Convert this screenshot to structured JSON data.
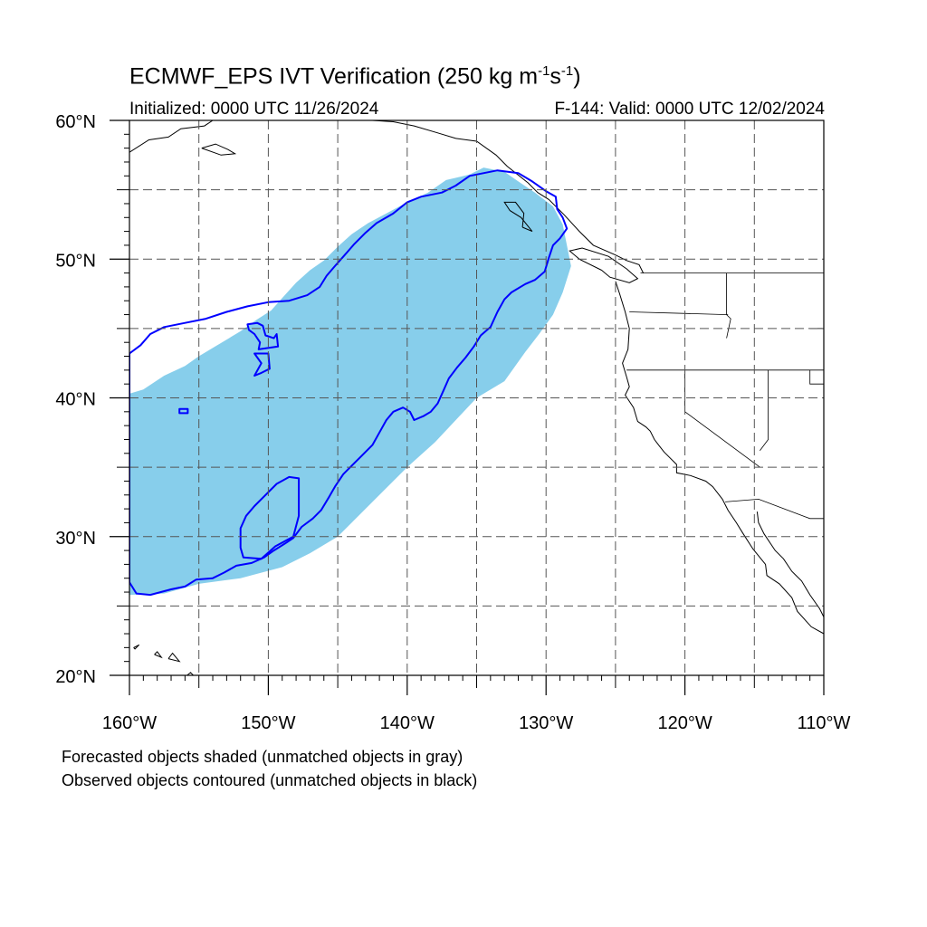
{
  "title": {
    "main": "ECMWF_EPS IVT Verification (250 kg m",
    "sup1": "-1",
    "mid": "s",
    "sup2": "-1",
    "end": ")"
  },
  "subtitle": {
    "initialized": "Initialized: 0000 UTC 11/26/2024",
    "valid": "F-144: Valid: 0000 UTC 12/02/2024"
  },
  "map": {
    "lon_range": [
      -160,
      -110
    ],
    "lat_range": [
      20,
      60
    ],
    "lon_ticks": [
      {
        "value": -160,
        "label": "160°W"
      },
      {
        "value": -150,
        "label": "150°W"
      },
      {
        "value": -140,
        "label": "140°W"
      },
      {
        "value": -130,
        "label": "130°W"
      },
      {
        "value": -120,
        "label": "120°W"
      },
      {
        "value": -110,
        "label": "110°W"
      }
    ],
    "lat_ticks": [
      {
        "value": 60,
        "label": "60°N"
      },
      {
        "value": 50,
        "label": "50°N"
      },
      {
        "value": 40,
        "label": "40°N"
      },
      {
        "value": 30,
        "label": "30°N"
      },
      {
        "value": 20,
        "label": "20°N"
      }
    ],
    "grid_lon": [
      -155,
      -150,
      -145,
      -140,
      -135,
      -130,
      -125,
      -120,
      -115
    ],
    "grid_lat": [
      25,
      30,
      35,
      40,
      45,
      50,
      55
    ],
    "colors": {
      "forecast_fill": "#87ceeb",
      "observed_contour": "#0000ff",
      "coast": "#000000",
      "grid": "#555555"
    },
    "forecast_object": [
      [
        -160,
        25.8
      ],
      [
        -157.5,
        25.9
      ],
      [
        -155,
        26.6
      ],
      [
        -152,
        27.0
      ],
      [
        -149,
        27.8
      ],
      [
        -147,
        28.8
      ],
      [
        -145,
        30.0
      ],
      [
        -143.5,
        31.5
      ],
      [
        -142,
        33.0
      ],
      [
        -140,
        35.0
      ],
      [
        -138,
        36.8
      ],
      [
        -136.5,
        38.4
      ],
      [
        -135,
        40.0
      ],
      [
        -133,
        41.2
      ],
      [
        -131.5,
        43.3
      ],
      [
        -130.5,
        44.6
      ],
      [
        -129.5,
        46.0
      ],
      [
        -128.8,
        47.6
      ],
      [
        -128.2,
        49.5
      ],
      [
        -128.5,
        51.0
      ],
      [
        -128.8,
        52.5
      ],
      [
        -129.5,
        53.8
      ],
      [
        -130.8,
        54.8
      ],
      [
        -132,
        55.6
      ],
      [
        -133,
        56.3
      ],
      [
        -134.5,
        56.6
      ],
      [
        -135.5,
        56.1
      ],
      [
        -137.2,
        55.7
      ],
      [
        -138.5,
        54.8
      ],
      [
        -140,
        54.1
      ],
      [
        -141.5,
        53.3
      ],
      [
        -142.8,
        52.6
      ],
      [
        -144,
        51.8
      ],
      [
        -145,
        50.9
      ],
      [
        -146,
        49.9
      ],
      [
        -147,
        49.2
      ],
      [
        -148,
        48.3
      ],
      [
        -149,
        47.2
      ],
      [
        -149.8,
        46.3
      ],
      [
        -150.9,
        45.6
      ],
      [
        -152,
        44.8
      ],
      [
        -153.5,
        43.9
      ],
      [
        -155,
        43.0
      ],
      [
        -156,
        42.3
      ],
      [
        -157.5,
        41.6
      ],
      [
        -159,
        40.6
      ],
      [
        -160,
        40.3
      ]
    ],
    "observed_objects": [
      [
        [
          -160,
          43.2
        ],
        [
          -159.2,
          43.8
        ],
        [
          -158.5,
          44.6
        ],
        [
          -157.5,
          45.1
        ],
        [
          -156,
          45.4
        ],
        [
          -154.5,
          45.7
        ],
        [
          -153,
          46.2
        ],
        [
          -151.5,
          46.6
        ],
        [
          -150,
          46.9
        ],
        [
          -148.5,
          47.0
        ],
        [
          -147.2,
          47.4
        ],
        [
          -146.3,
          48.0
        ],
        [
          -145.8,
          48.8
        ],
        [
          -145.2,
          49.5
        ],
        [
          -144.5,
          50.3
        ],
        [
          -143.8,
          51.1
        ],
        [
          -143.0,
          51.9
        ],
        [
          -142.2,
          52.6
        ],
        [
          -141.0,
          53.3
        ],
        [
          -140.0,
          54.1
        ],
        [
          -139.0,
          54.5
        ],
        [
          -137.5,
          54.8
        ],
        [
          -136.5,
          55.3
        ],
        [
          -135.5,
          56.0
        ],
        [
          -133.5,
          56.4
        ],
        [
          -132.0,
          56.2
        ],
        [
          -131.0,
          55.6
        ],
        [
          -130.0,
          54.9
        ],
        [
          -129.3,
          54.5
        ],
        [
          -129.2,
          53.6
        ],
        [
          -128.8,
          53.0
        ],
        [
          -128.5,
          52.2
        ],
        [
          -129.0,
          51.5
        ],
        [
          -129.5,
          51.0
        ],
        [
          -129.8,
          50.1
        ],
        [
          -130.1,
          49.1
        ],
        [
          -130.8,
          48.5
        ],
        [
          -131.5,
          48.2
        ],
        [
          -132.5,
          47.6
        ],
        [
          -133.0,
          47.1
        ],
        [
          -133.5,
          46.2
        ],
        [
          -134.0,
          45.1
        ],
        [
          -134.7,
          44.5
        ],
        [
          -135.2,
          43.7
        ],
        [
          -135.8,
          42.9
        ],
        [
          -136.4,
          42.2
        ],
        [
          -137.0,
          41.4
        ],
        [
          -137.4,
          40.5
        ],
        [
          -137.8,
          39.6
        ],
        [
          -138.3,
          39.0
        ],
        [
          -138.8,
          38.7
        ],
        [
          -139.5,
          38.4
        ],
        [
          -139.8,
          39.0
        ],
        [
          -140.3,
          39.3
        ],
        [
          -141.0,
          39.0
        ],
        [
          -141.5,
          38.4
        ],
        [
          -142.0,
          37.5
        ],
        [
          -142.5,
          36.6
        ],
        [
          -143.2,
          35.9
        ],
        [
          -144.0,
          35.1
        ],
        [
          -144.6,
          34.5
        ],
        [
          -145.2,
          33.6
        ],
        [
          -145.6,
          32.9
        ],
        [
          -146.2,
          31.9
        ],
        [
          -146.8,
          31.3
        ],
        [
          -147.6,
          30.7
        ],
        [
          -148.2,
          29.9
        ],
        [
          -148.8,
          29.5
        ],
        [
          -149.6,
          29.0
        ],
        [
          -150.3,
          28.5
        ],
        [
          -151.2,
          28.1
        ],
        [
          -152.3,
          27.9
        ],
        [
          -153.2,
          27.4
        ],
        [
          -154.0,
          27.0
        ],
        [
          -155.2,
          26.9
        ],
        [
          -156.0,
          26.4
        ],
        [
          -157.0,
          26.2
        ],
        [
          -158.5,
          25.8
        ],
        [
          -159.5,
          25.9
        ],
        [
          -160.0,
          26.7
        ]
      ],
      [
        [
          -151.5,
          45.3
        ],
        [
          -150.8,
          45.4
        ],
        [
          -150.4,
          45.2
        ],
        [
          -150.2,
          44.5
        ],
        [
          -149.6,
          44.3
        ],
        [
          -149.4,
          44.6
        ],
        [
          -149.3,
          43.7
        ],
        [
          -150.7,
          43.5
        ],
        [
          -150.6,
          44.0
        ],
        [
          -151.0,
          44.6
        ],
        [
          -151.4,
          44.9
        ]
      ],
      [
        [
          -151.0,
          43.2
        ],
        [
          -150.0,
          43.2
        ],
        [
          -149.9,
          42.1
        ],
        [
          -150.5,
          41.8
        ],
        [
          -151.0,
          41.6
        ],
        [
          -150.5,
          42.5
        ],
        [
          -151.0,
          43.2
        ]
      ],
      [
        [
          -156.4,
          39.2
        ],
        [
          -155.8,
          39.2
        ],
        [
          -155.8,
          38.9
        ],
        [
          -156.4,
          38.9
        ]
      ],
      [
        [
          -151.0,
          32.2
        ],
        [
          -150.4,
          32.8
        ],
        [
          -149.4,
          33.8
        ],
        [
          -148.5,
          34.3
        ],
        [
          -147.8,
          34.2
        ],
        [
          -147.8,
          31.5
        ],
        [
          -148.2,
          30.0
        ],
        [
          -149.5,
          29.3
        ],
        [
          -150.5,
          28.4
        ],
        [
          -151.8,
          28.5
        ],
        [
          -152.0,
          29.2
        ],
        [
          -152.0,
          30.6
        ],
        [
          -151.6,
          31.5
        ]
      ]
    ],
    "coastlines": [
      [
        [
          -125.0,
          48.4
        ],
        [
          -124.7,
          47.5
        ],
        [
          -124.3,
          46.2
        ],
        [
          -124.0,
          45.0
        ],
        [
          -124.1,
          43.5
        ],
        [
          -124.5,
          42.5
        ],
        [
          -124.2,
          41.5
        ],
        [
          -124.0,
          40.8
        ],
        [
          -124.3,
          40.2
        ],
        [
          -123.7,
          39.3
        ],
        [
          -123.4,
          38.3
        ],
        [
          -122.8,
          37.9
        ],
        [
          -122.5,
          37.6
        ],
        [
          -122.2,
          37.0
        ],
        [
          -121.9,
          36.6
        ],
        [
          -121.5,
          36.1
        ],
        [
          -120.6,
          35.2
        ],
        [
          -120.6,
          34.6
        ],
        [
          -119.6,
          34.4
        ],
        [
          -118.5,
          34.0
        ],
        [
          -118.0,
          33.6
        ],
        [
          -117.3,
          32.7
        ],
        [
          -116.9,
          31.9
        ],
        [
          -116.3,
          31.0
        ],
        [
          -115.8,
          30.2
        ],
        [
          -115.1,
          29.1
        ],
        [
          -114.2,
          28.0
        ],
        [
          -114.1,
          27.2
        ],
        [
          -113.2,
          26.6
        ],
        [
          -112.3,
          25.6
        ],
        [
          -111.9,
          24.6
        ],
        [
          -110.9,
          23.5
        ],
        [
          -110.0,
          23.0
        ]
      ],
      [
        [
          -114.8,
          31.8
        ],
        [
          -114.7,
          31.0
        ],
        [
          -114.3,
          30.2
        ],
        [
          -113.5,
          29.0
        ],
        [
          -112.9,
          28.4
        ],
        [
          -112.3,
          27.5
        ],
        [
          -111.6,
          26.8
        ],
        [
          -111.0,
          25.8
        ],
        [
          -110.3,
          24.8
        ],
        [
          -110.0,
          24.2
        ]
      ],
      [
        [
          -123.0,
          49.0
        ],
        [
          -123.3,
          49.6
        ],
        [
          -124.2,
          49.9
        ],
        [
          -125.0,
          50.3
        ],
        [
          -126.6,
          51.0
        ],
        [
          -127.6,
          52.0
        ],
        [
          -128.7,
          53.2
        ],
        [
          -129.8,
          54.3
        ],
        [
          -130.6,
          54.8
        ],
        [
          -131.3,
          55.5
        ],
        [
          -132.8,
          56.7
        ],
        [
          -133.6,
          57.5
        ],
        [
          -135.0,
          58.5
        ],
        [
          -136.5,
          58.7
        ],
        [
          -137.8,
          59.1
        ],
        [
          -139.5,
          59.6
        ],
        [
          -141.0,
          59.9
        ],
        [
          -142.5,
          60.0
        ]
      ],
      [
        [
          -126.0,
          49.2
        ],
        [
          -125.4,
          48.7
        ],
        [
          -124.0,
          48.3
        ],
        [
          -123.4,
          48.6
        ],
        [
          -124.2,
          49.3
        ],
        [
          -125.5,
          50.2
        ],
        [
          -127.4,
          50.8
        ],
        [
          -128.3,
          50.6
        ],
        [
          -127.6,
          50.0
        ],
        [
          -126.0,
          49.2
        ]
      ],
      [
        [
          -131.7,
          52.3
        ],
        [
          -131.0,
          52.0
        ],
        [
          -131.8,
          53.0
        ],
        [
          -132.6,
          53.5
        ],
        [
          -133.0,
          54.1
        ],
        [
          -132.2,
          54.1
        ],
        [
          -131.6,
          53.3
        ],
        [
          -131.7,
          52.3
        ]
      ],
      [
        [
          -160.0,
          57.7
        ],
        [
          -158.6,
          58.6
        ],
        [
          -157.2,
          58.8
        ],
        [
          -156.3,
          59.4
        ],
        [
          -154.6,
          59.6
        ],
        [
          -154.0,
          60.0
        ]
      ],
      [
        [
          -154.8,
          58.0
        ],
        [
          -153.4,
          57.5
        ],
        [
          -152.4,
          57.6
        ],
        [
          -152.9,
          57.9
        ],
        [
          -153.8,
          58.3
        ],
        [
          -154.8,
          58.0
        ]
      ],
      [
        [
          -156.1,
          19.8
        ],
        [
          -155.6,
          20.2
        ],
        [
          -154.9,
          19.5
        ],
        [
          -155.6,
          18.9
        ],
        [
          -156.1,
          19.8
        ]
      ],
      [
        [
          -157.2,
          21.2
        ],
        [
          -156.9,
          21.6
        ],
        [
          -156.4,
          21.0
        ],
        [
          -157.2,
          21.2
        ]
      ],
      [
        [
          -158.2,
          21.5
        ],
        [
          -157.7,
          21.3
        ],
        [
          -158.0,
          21.7
        ],
        [
          -158.2,
          21.5
        ]
      ],
      [
        [
          -159.7,
          22.0
        ],
        [
          -159.3,
          22.2
        ],
        [
          -159.6,
          21.9
        ],
        [
          -159.7,
          22.0
        ]
      ]
    ],
    "borders": [
      [
        [
          -123.2,
          49.0
        ],
        [
          -110.0,
          49.0
        ]
      ],
      [
        [
          -124.2,
          42.0
        ],
        [
          -110.0,
          42.0
        ]
      ],
      [
        [
          -120.0,
          42.0
        ],
        [
          -120.0,
          39.0
        ],
        [
          -114.6,
          35.0
        ]
      ],
      [
        [
          -117.0,
          49.0
        ],
        [
          -117.0,
          46.0
        ],
        [
          -116.7,
          45.7
        ],
        [
          -117.0,
          44.3
        ]
      ],
      [
        [
          -116.9,
          46.0
        ],
        [
          -124.0,
          46.2
        ]
      ],
      [
        [
          -114.0,
          42.0
        ],
        [
          -114.0,
          37.0
        ],
        [
          -114.6,
          36.2
        ]
      ],
      [
        [
          -117.1,
          32.5
        ],
        [
          -114.7,
          32.7
        ],
        [
          -111.0,
          31.3
        ],
        [
          -110.0,
          31.3
        ]
      ],
      [
        [
          -111.0,
          42.0
        ],
        [
          -111.0,
          41.0
        ],
        [
          -110.0,
          41.0
        ]
      ],
      [
        [
          -111.0,
          45.0
        ],
        [
          -110.0,
          45.0
        ]
      ]
    ]
  },
  "footnotes": [
    "Forecasted objects shaded (unmatched objects in gray)",
    "Observed objects contoured (unmatched objects in black)"
  ]
}
